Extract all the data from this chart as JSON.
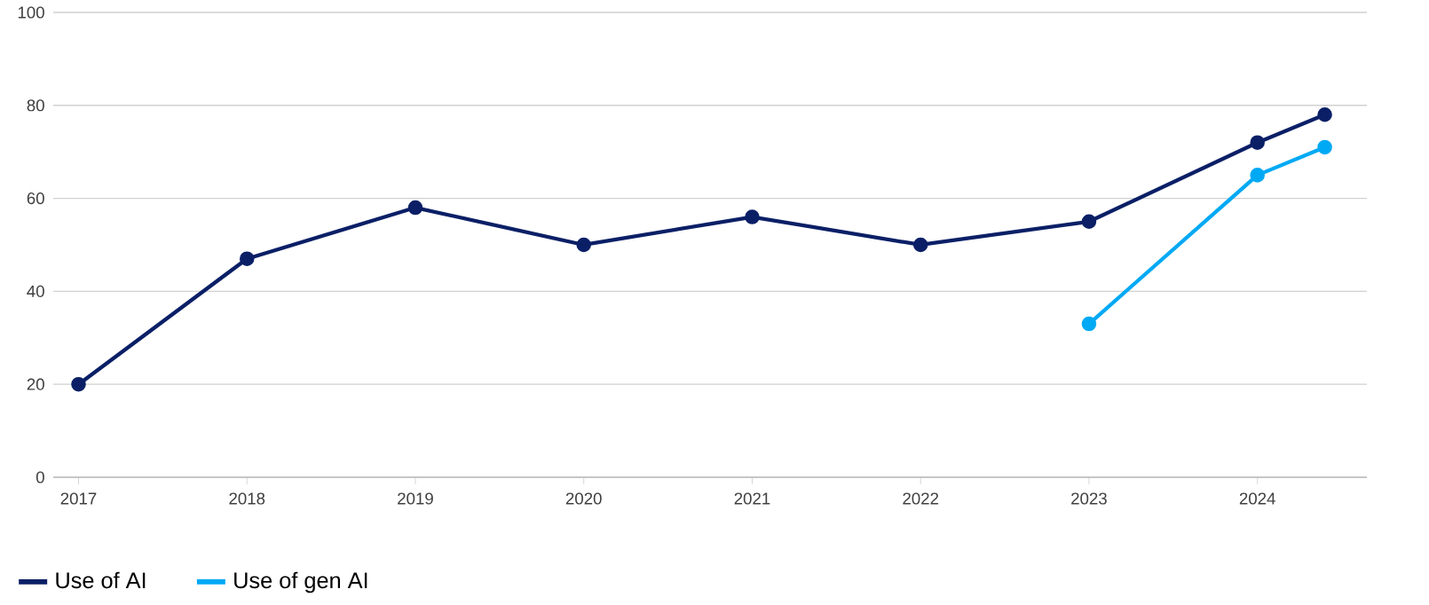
{
  "chart_data": {
    "type": "line",
    "x": [
      2017,
      2018,
      2019,
      2020,
      2021,
      2022,
      2023,
      2024,
      2024.4
    ],
    "series": [
      {
        "name": "Use of AI",
        "color": "#0a1f66",
        "values": [
          20,
          47,
          58,
          50,
          56,
          50,
          55,
          72,
          78
        ]
      },
      {
        "name": "Use of gen AI",
        "color": "#00a9f4",
        "x": [
          2023,
          2024,
          2024.4
        ],
        "values": [
          33,
          65,
          71
        ]
      }
    ],
    "xlim": [
      2016.85,
      2024.65
    ],
    "xticks": [
      2017,
      2018,
      2019,
      2020,
      2021,
      2022,
      2023,
      2024
    ],
    "ylim": [
      0,
      100
    ],
    "yticks": [
      0,
      20,
      40,
      60,
      80,
      100
    ],
    "grid": "y",
    "legend": "bottom left",
    "marker": "circle",
    "line_style": "solid"
  }
}
